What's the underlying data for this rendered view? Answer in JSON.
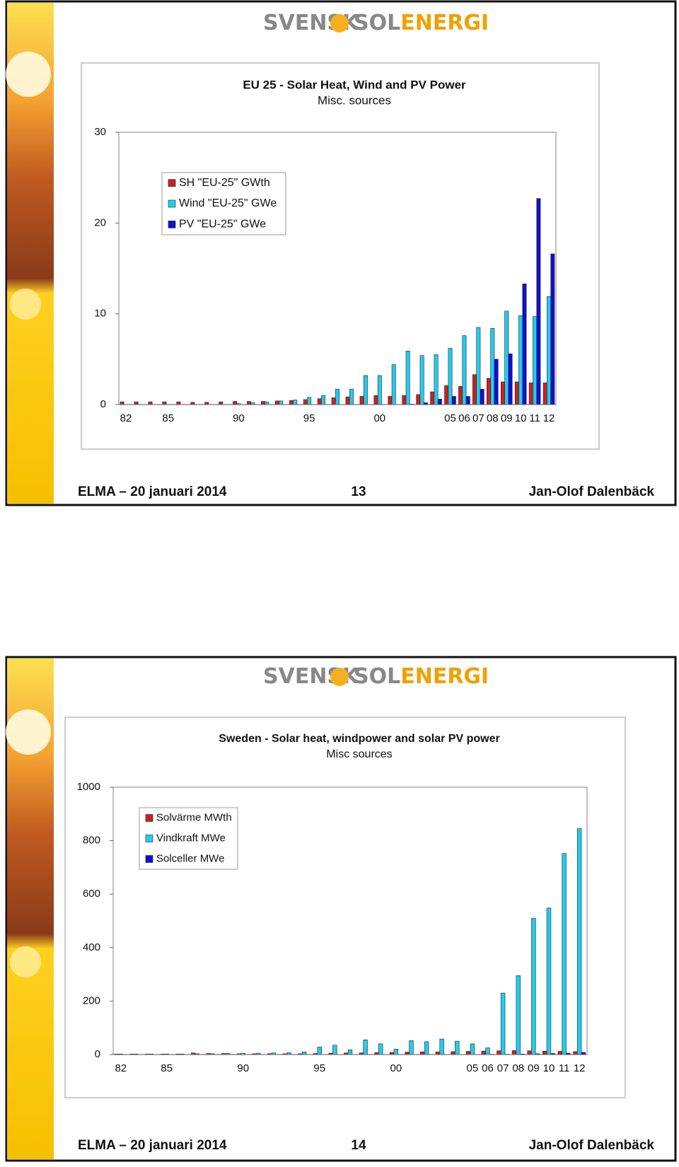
{
  "slides": [
    {
      "logo": [
        "SVENSK",
        "SOL",
        "ENERGI"
      ],
      "footer": {
        "left": "ELMA – 20 januari 2014",
        "page": "13",
        "right": "Jan-Olof Dalenbäck"
      }
    },
    {
      "logo": [
        "SVENSK",
        "SOL",
        "ENERGI"
      ],
      "footer": {
        "left": "ELMA – 20 januari 2014",
        "page": "14",
        "right": "Jan-Olof Dalenbäck"
      }
    }
  ],
  "chart_data": [
    {
      "type": "bar",
      "title": "EU 25 - Solar Heat, Wind and PV Power",
      "subtitle": "Misc. sources",
      "categories": [
        "82",
        null,
        null,
        "85",
        null,
        null,
        null,
        null,
        "90",
        null,
        null,
        null,
        null,
        "95",
        null,
        null,
        null,
        null,
        "00",
        null,
        null,
        null,
        null,
        "05",
        "06",
        "07",
        "08",
        "09",
        "10",
        "11",
        "12"
      ],
      "series": [
        {
          "name": "SH \"EU-25\" GWth",
          "color": "#cc2020",
          "values": [
            0.3,
            0.3,
            0.3,
            0.3,
            0.3,
            0.25,
            0.25,
            0.3,
            0.35,
            0.35,
            0.35,
            0.4,
            0.45,
            0.55,
            0.65,
            0.75,
            0.85,
            0.9,
            1.0,
            0.9,
            1.0,
            1.1,
            1.4,
            2.1,
            2.0,
            3.3,
            2.9,
            2.5,
            2.5,
            2.4,
            2.4
          ]
        },
        {
          "name": "Wind \"EU-25\" GWe",
          "color": "#22ccee",
          "values": [
            0,
            0,
            0,
            0,
            0,
            0,
            0,
            0,
            0.1,
            0.2,
            0.3,
            0.4,
            0.5,
            0.8,
            1.0,
            1.7,
            1.7,
            3.2,
            3.2,
            4.4,
            5.9,
            5.4,
            5.5,
            6.2,
            7.6,
            8.5,
            8.4,
            10.3,
            9.8,
            9.7,
            11.9
          ]
        },
        {
          "name": "PV \"EU-25\" GWe",
          "color": "#1010cc",
          "values": [
            0,
            0,
            0,
            0,
            0,
            0,
            0,
            0,
            0,
            0,
            0,
            0,
            0,
            0,
            0,
            0,
            0,
            0,
            0,
            0,
            0.05,
            0.2,
            0.6,
            0.9,
            0.9,
            1.7,
            5.0,
            5.6,
            13.3,
            22.7,
            16.6
          ]
        }
      ],
      "ylim": [
        0,
        30
      ],
      "yticks": [
        0,
        10,
        20,
        30
      ],
      "grid": false,
      "legend": "upper left"
    },
    {
      "type": "bar",
      "title": "Sweden - Solar heat, windpower and solar PV power",
      "subtitle": "Misc sources",
      "categories": [
        "82",
        null,
        null,
        "85",
        null,
        null,
        null,
        null,
        "90",
        null,
        null,
        null,
        null,
        "95",
        null,
        null,
        null,
        null,
        "00",
        null,
        null,
        null,
        null,
        "05",
        "06",
        "07",
        "08",
        "09",
        "10",
        "11",
        "12"
      ],
      "series": [
        {
          "name": "Solvärme MWth",
          "color": "#cc2020",
          "values": [
            2,
            2,
            2,
            2,
            2,
            6,
            4,
            4,
            3,
            3,
            3,
            3,
            3,
            4,
            5,
            6,
            6,
            7,
            8,
            9,
            10,
            10,
            11,
            12,
            13,
            14,
            15,
            14,
            13,
            12,
            11
          ]
        },
        {
          "name": "Vindkraft MWe",
          "color": "#22ccee",
          "values": [
            2,
            2,
            2,
            2,
            2,
            3,
            3,
            4,
            5,
            5,
            6,
            7,
            10,
            28,
            35,
            18,
            55,
            40,
            20,
            52,
            48,
            58,
            50,
            40,
            25,
            230,
            295,
            510,
            548,
            752,
            845
          ]
        },
        {
          "name": "Solceller MWe",
          "color": "#1010cc",
          "values": [
            0,
            0,
            0,
            0,
            0,
            0,
            0,
            0,
            0,
            0,
            0,
            0,
            0,
            0,
            0,
            0,
            0,
            0,
            0,
            0,
            0,
            0,
            0,
            0,
            1,
            1,
            2,
            3,
            4,
            5,
            8
          ]
        }
      ],
      "ylim": [
        0,
        1000
      ],
      "yticks": [
        0,
        200,
        400,
        600,
        800,
        1000
      ],
      "grid": false,
      "legend": "upper left"
    }
  ]
}
